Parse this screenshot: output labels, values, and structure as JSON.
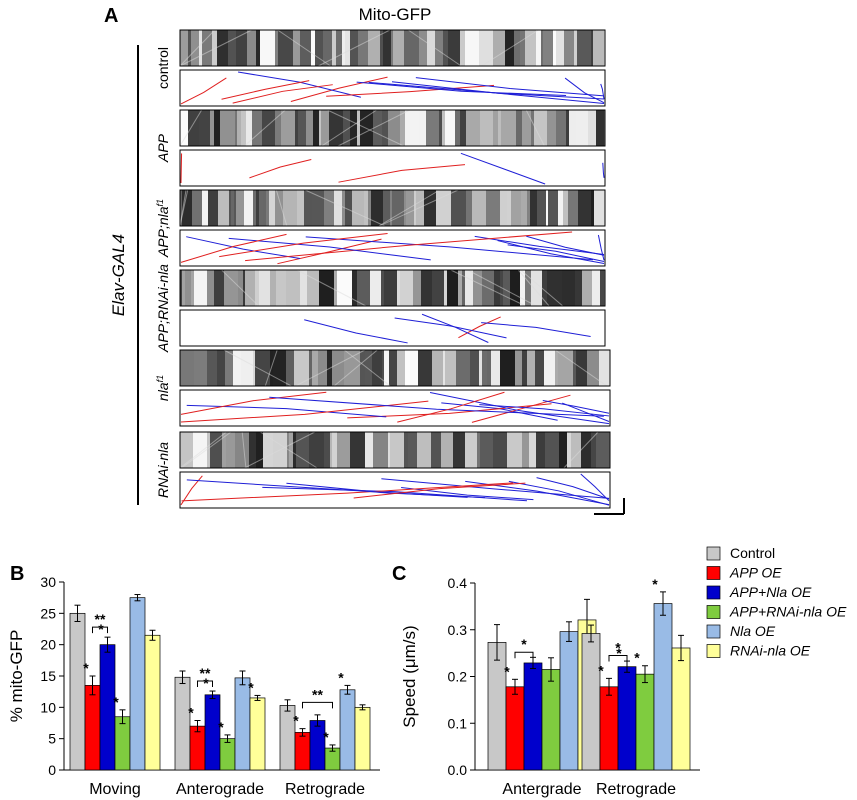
{
  "panel_a": {
    "letter": "A",
    "title": "Mito-GFP",
    "driver_label": "Elav-GAL4",
    "genotypes": [
      {
        "label": "control"
      },
      {
        "label": "APP"
      },
      {
        "label": "APP;nla",
        "sup": "f1"
      },
      {
        "label": "APP;RNAi-nla"
      },
      {
        "label": "nla",
        "sup": "f1"
      },
      {
        "label": "RNAi-nla"
      }
    ],
    "trace_colors": {
      "anterograde": "#1f1fd6",
      "retrograde": "#e02020"
    }
  },
  "colors": {
    "Control": "#c8c8c8",
    "APP OE": "#ff0000",
    "APP+Nla OE": "#0000cc",
    "APP+RNAi-nla OE": "#7fcc3f",
    "Nla OE": "#99bbe6",
    "RNAi-nla OE": "#ffff99"
  },
  "chart_data": [
    {
      "type": "bar",
      "panel": "B",
      "title": "",
      "xlabel": "",
      "ylabel": "% mito-GFP",
      "ylim": [
        0,
        30
      ],
      "yticks": [
        0,
        5,
        10,
        15,
        20,
        25,
        30
      ],
      "categories": [
        "Moving",
        "Anterograde",
        "Retrograde"
      ],
      "series": [
        {
          "name": "Control",
          "values": [
            25.0,
            14.8,
            10.3
          ],
          "errors": [
            1.3,
            1.0,
            0.9
          ]
        },
        {
          "name": "APP OE",
          "values": [
            13.5,
            7.0,
            6.0
          ],
          "errors": [
            1.5,
            0.9,
            0.6
          ]
        },
        {
          "name": "APP+Nla OE",
          "values": [
            20.0,
            12.0,
            7.9
          ],
          "errors": [
            1.2,
            0.6,
            0.9
          ]
        },
        {
          "name": "APP+RNAi-nla OE",
          "values": [
            8.5,
            5.0,
            3.5
          ],
          "errors": [
            1.1,
            0.6,
            0.5
          ]
        },
        {
          "name": "Nla OE",
          "values": [
            27.5,
            14.7,
            12.8
          ],
          "errors": [
            0.5,
            1.1,
            0.7
          ]
        },
        {
          "name": "RNAi-nla OE",
          "values": [
            21.5,
            11.5,
            10.0
          ],
          "errors": [
            0.8,
            0.4,
            0.4
          ]
        }
      ],
      "significance": [
        {
          "category": 0,
          "bar": 1,
          "label": "*"
        },
        {
          "category": 0,
          "bar": 2,
          "label": "*"
        },
        {
          "category": 0,
          "bar": 3,
          "label": "*"
        },
        {
          "category": 1,
          "bar": 1,
          "label": "*"
        },
        {
          "category": 1,
          "bar": 2,
          "label": "*"
        },
        {
          "category": 1,
          "bar": 3,
          "label": "*"
        },
        {
          "category": 1,
          "bar": 5,
          "label": "*"
        },
        {
          "category": 2,
          "bar": 1,
          "label": "*"
        },
        {
          "category": 2,
          "bar": 3,
          "label": "*"
        },
        {
          "category": 2,
          "bar": 4,
          "label": "*"
        }
      ],
      "brackets": [
        {
          "category": 0,
          "from": 1,
          "to": 2,
          "label": "**",
          "y": 22.8
        },
        {
          "category": 1,
          "from": 1,
          "to": 2,
          "label": "**",
          "y": 14.2
        },
        {
          "category": 2,
          "from": 1,
          "to": 3,
          "label": "**",
          "y": 10.8
        }
      ]
    },
    {
      "type": "bar",
      "panel": "C",
      "title": "",
      "xlabel": "",
      "ylabel": "Speed (μm/s)",
      "ylim": [
        0,
        0.4
      ],
      "yticks": [
        "0.0",
        "0.1",
        "0.2",
        "0.3",
        "0.4"
      ],
      "categories": [
        "Antergrade",
        "Retrograde"
      ],
      "series": [
        {
          "name": "Control",
          "values": [
            0.273,
            0.292
          ],
          "errors": [
            0.038,
            0.018
          ]
        },
        {
          "name": "APP OE",
          "values": [
            0.178,
            0.178
          ],
          "errors": [
            0.016,
            0.018
          ]
        },
        {
          "name": "APP+Nla OE",
          "values": [
            0.229,
            0.221
          ],
          "errors": [
            0.012,
            0.012
          ]
        },
        {
          "name": "APP+RNAi-nla OE",
          "values": [
            0.215,
            0.205
          ],
          "errors": [
            0.025,
            0.018
          ]
        },
        {
          "name": "Nla OE",
          "values": [
            0.296,
            0.356
          ],
          "errors": [
            0.021,
            0.025
          ]
        },
        {
          "name": "RNAi-nla OE",
          "values": [
            0.321,
            0.261
          ],
          "errors": [
            0.044,
            0.027
          ]
        }
      ],
      "significance": [
        {
          "category": 0,
          "bar": 1,
          "label": "*"
        },
        {
          "category": 1,
          "bar": 1,
          "label": "*"
        },
        {
          "category": 1,
          "bar": 2,
          "label": "*"
        },
        {
          "category": 1,
          "bar": 3,
          "label": "*"
        },
        {
          "category": 1,
          "bar": 4,
          "label": "*"
        }
      ],
      "brackets": [
        {
          "category": 0,
          "from": 1,
          "to": 2,
          "label": "*",
          "y": 0.252
        },
        {
          "category": 1,
          "from": 1,
          "to": 2,
          "label": "*",
          "y": 0.245
        }
      ]
    }
  ],
  "legend": {
    "placement": "right",
    "items": [
      {
        "label": "Control",
        "italic": false
      },
      {
        "label": "APP OE",
        "italic": true
      },
      {
        "label": "APP+Nla OE",
        "italic": true
      },
      {
        "label": "APP+RNAi-nla OE",
        "italic": true
      },
      {
        "label": "Nla OE",
        "italic": true
      },
      {
        "label": "RNAi-nla OE",
        "italic": true
      }
    ]
  }
}
